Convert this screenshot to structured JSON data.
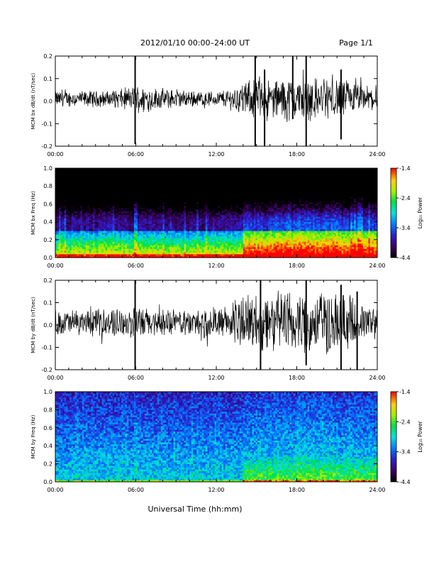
{
  "header": {
    "title": "2012/01/10  00:00–24:00 UT",
    "page": "Page 1/1"
  },
  "x_title": "Universal Time (hh:mm)",
  "colorbar": {
    "title": "Log₁₀ Power",
    "ticks": [
      "-1.4",
      "-2.4",
      "-3.4",
      "-4.4"
    ]
  },
  "chart_data": [
    {
      "type": "line",
      "ylabel": "MCM bx dB/dt (nT/sec)",
      "xlim": [
        0,
        24
      ],
      "ylim": [
        -0.2,
        0.2
      ],
      "xticks": [
        "00:00",
        "06:00",
        "12:00",
        "18:00",
        "24:00"
      ],
      "yticks": [
        "0.2",
        "0.1",
        "0.0",
        "-0.1",
        "-0.2"
      ],
      "envelope_x": [
        0,
        2,
        4,
        5,
        6,
        8,
        10,
        12,
        13,
        14,
        15,
        16,
        17,
        18,
        19,
        20,
        21,
        22,
        23,
        24
      ],
      "envelope_y": [
        0.03,
        0.03,
        0.03,
        0.04,
        0.05,
        0.04,
        0.03,
        0.03,
        0.04,
        0.06,
        0.08,
        0.07,
        0.08,
        0.08,
        0.08,
        0.08,
        0.08,
        0.07,
        0.05,
        0.05
      ],
      "spikes": [
        {
          "x": 5.95,
          "y_min": -0.19,
          "y_max": 0.2
        },
        {
          "x": 14.9,
          "y_min": -0.2,
          "y_max": 0.2
        },
        {
          "x": 15.6,
          "y_min": -0.2,
          "y_max": 0.14
        },
        {
          "x": 17.7,
          "y_min": -0.08,
          "y_max": 0.2
        },
        {
          "x": 18.7,
          "y_min": -0.2,
          "y_max": 0.2
        },
        {
          "x": 21.3,
          "y_min": -0.17,
          "y_max": 0.14
        }
      ]
    },
    {
      "type": "heatmap",
      "ylabel": "MCM bx Freq (Hz)",
      "xlim": [
        0,
        24
      ],
      "ylim": [
        0,
        1.0
      ],
      "xticks": [
        "00:00",
        "06:00",
        "12:00",
        "18:00",
        "24:00"
      ],
      "yticks": [
        "1.0",
        "0.8",
        "0.6",
        "0.4",
        "0.2",
        "0.0"
      ],
      "colorbar_range": [
        -4.4,
        -1.4
      ],
      "notes": "bx spectrogram: mostly quiet (black) above 0.3 Hz, enhanced power below 0.3 Hz after 14:00"
    },
    {
      "type": "line",
      "ylabel": "MCM by dB/dt (nT/sec)",
      "xlim": [
        0,
        24
      ],
      "ylim": [
        -0.2,
        0.2
      ],
      "xticks": [
        "00:00",
        "06:00",
        "12:00",
        "18:00",
        "24:00"
      ],
      "yticks": [
        "0.2",
        "0.1",
        "0.0",
        "-0.1",
        "-0.2"
      ],
      "envelope_x": [
        0,
        2,
        4,
        5,
        6,
        8,
        10,
        12,
        13,
        14,
        15,
        16,
        17,
        18,
        19,
        20,
        21,
        22,
        23,
        24
      ],
      "envelope_y": [
        0.05,
        0.05,
        0.05,
        0.06,
        0.06,
        0.05,
        0.05,
        0.06,
        0.07,
        0.1,
        0.12,
        0.12,
        0.12,
        0.12,
        0.12,
        0.12,
        0.12,
        0.1,
        0.07,
        0.06
      ],
      "spikes": [
        {
          "x": 5.95,
          "y_min": -0.2,
          "y_max": 0.2
        },
        {
          "x": 15.3,
          "y_min": -0.2,
          "y_max": 0.2
        },
        {
          "x": 18.7,
          "y_min": -0.18,
          "y_max": 0.2
        },
        {
          "x": 21.3,
          "y_min": -0.2,
          "y_max": 0.18
        },
        {
          "x": 22.5,
          "y_min": -0.2,
          "y_max": 0.15
        }
      ]
    },
    {
      "type": "heatmap",
      "ylabel": "MCM by Freq (Hz)",
      "xlim": [
        0,
        24
      ],
      "ylim": [
        0,
        1.0
      ],
      "xticks": [
        "00:00",
        "06:00",
        "12:00",
        "18:00",
        "24:00"
      ],
      "yticks": [
        "1.0",
        "0.8",
        "0.6",
        "0.4",
        "0.2",
        "0.0"
      ],
      "colorbar_range": [
        -4.4,
        -1.4
      ],
      "notes": "by spectrogram: broadband blue/cyan at all frequencies, green/yellow below 0.3 Hz after 14:00"
    }
  ]
}
